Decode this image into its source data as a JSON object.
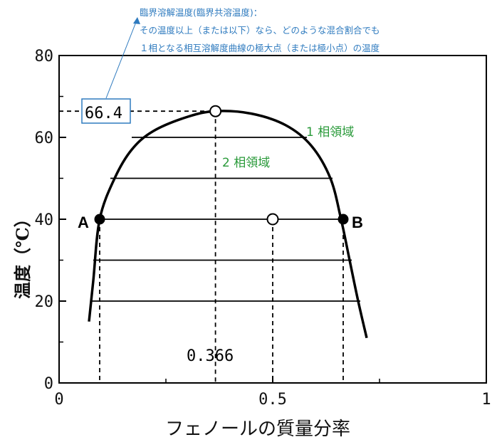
{
  "chart_data": {
    "type": "line",
    "xlabel": "フェノールの質量分率",
    "ylabel": "温度（℃）",
    "xlim": [
      0,
      1
    ],
    "ylim": [
      0,
      80
    ],
    "xticks": [
      "0",
      "0.5",
      "1"
    ],
    "yticks": [
      "0",
      "20",
      "40",
      "60",
      "80"
    ],
    "series": [
      {
        "values": [
          {
            "x": 0.07,
            "y": 15
          },
          {
            "x": 0.08,
            "y": 25
          },
          {
            "x": 0.095,
            "y": 40
          },
          {
            "x": 0.13,
            "y": 50
          },
          {
            "x": 0.17,
            "y": 57
          },
          {
            "x": 0.22,
            "y": 61.5
          },
          {
            "x": 0.3,
            "y": 65
          },
          {
            "x": 0.366,
            "y": 66.4
          },
          {
            "x": 0.45,
            "y": 65.8
          },
          {
            "x": 0.53,
            "y": 63
          },
          {
            "x": 0.59,
            "y": 58
          },
          {
            "x": 0.635,
            "y": 50
          },
          {
            "x": 0.66,
            "y": 40
          },
          {
            "x": 0.68,
            "y": 30
          },
          {
            "x": 0.7,
            "y": 20
          },
          {
            "x": 0.72,
            "y": 11
          }
        ]
      }
    ],
    "tie_lines": [
      {
        "y": 60,
        "x_left": 0.17,
        "x_right": 0.58
      },
      {
        "y": 50,
        "x_left": 0.12,
        "x_right": 0.64
      },
      {
        "y": 40,
        "x_left": 0.095,
        "x_right": 0.665
      },
      {
        "y": 30,
        "x_left": 0.08,
        "x_right": 0.685
      },
      {
        "y": 20,
        "x_left": 0.075,
        "x_right": 0.705
      }
    ],
    "points": [
      {
        "label": "A",
        "x": 0.095,
        "y": 40,
        "style": "filled"
      },
      {
        "label": "B",
        "x": 0.665,
        "y": 40,
        "style": "filled"
      },
      {
        "label": "",
        "x": 0.5,
        "y": 40,
        "style": "open"
      },
      {
        "label": "",
        "x": 0.366,
        "y": 66.4,
        "style": "open"
      }
    ],
    "critical_temperature_label": "66.4",
    "critical_fraction_label": "0.366",
    "region_labels": {
      "one_phase": "1 相領域",
      "two_phase": "2 相領域"
    },
    "annotation": [
      "臨界溶解温度(臨界共溶温度)：",
      "その温度以上（または以下）なら、どのような混合割合でも",
      "１相となる相互溶解度曲線の極大点（または極小点）の温度"
    ],
    "grid": false,
    "legend": "none"
  },
  "colors": {
    "curve": "#000000",
    "annotation": "#2f7bbf",
    "region": "#2a9a3a",
    "box": "#2f7bbf"
  }
}
